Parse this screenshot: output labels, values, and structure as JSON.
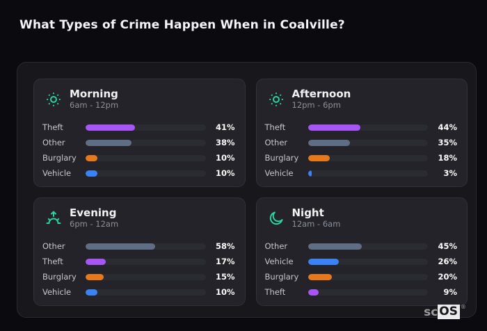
{
  "page_title": "What Types of Crime Happen When in Coalville?",
  "accent_color": "#2dd39e",
  "palette": {
    "theft": "#a855f7",
    "other": "#5f6e85",
    "burglary": "#e6791d",
    "vehicle": "#3b82f6"
  },
  "chart_data": [
    {
      "type": "bar",
      "orientation": "horizontal",
      "title": "Morning",
      "subtitle": "6am - 12pm",
      "icon": "sun-icon",
      "categories": [
        "Theft",
        "Other",
        "Burglary",
        "Vehicle"
      ],
      "values": [
        41,
        38,
        10,
        10
      ],
      "value_labels": [
        "41%",
        "38%",
        "10%",
        "10%"
      ],
      "bar_colors": [
        "#a855f7",
        "#5f6e85",
        "#e6791d",
        "#3b82f6"
      ],
      "xlim": [
        0,
        100
      ]
    },
    {
      "type": "bar",
      "orientation": "horizontal",
      "title": "Afternoon",
      "subtitle": "12pm - 6pm",
      "icon": "sun-icon",
      "categories": [
        "Theft",
        "Other",
        "Burglary",
        "Vehicle"
      ],
      "values": [
        44,
        35,
        18,
        3
      ],
      "value_labels": [
        "44%",
        "35%",
        "18%",
        "3%"
      ],
      "bar_colors": [
        "#a855f7",
        "#5f6e85",
        "#e6791d",
        "#3b82f6"
      ],
      "xlim": [
        0,
        100
      ]
    },
    {
      "type": "bar",
      "orientation": "horizontal",
      "title": "Evening",
      "subtitle": "6pm - 12am",
      "icon": "sunrise-icon",
      "categories": [
        "Other",
        "Theft",
        "Burglary",
        "Vehicle"
      ],
      "values": [
        58,
        17,
        15,
        10
      ],
      "value_labels": [
        "58%",
        "17%",
        "15%",
        "10%"
      ],
      "bar_colors": [
        "#5f6e85",
        "#a855f7",
        "#e6791d",
        "#3b82f6"
      ],
      "xlim": [
        0,
        100
      ]
    },
    {
      "type": "bar",
      "orientation": "horizontal",
      "title": "Night",
      "subtitle": "12am - 6am",
      "icon": "moon-icon",
      "categories": [
        "Other",
        "Vehicle",
        "Burglary",
        "Theft"
      ],
      "values": [
        45,
        26,
        20,
        9
      ],
      "value_labels": [
        "45%",
        "26%",
        "20%",
        "9%"
      ],
      "bar_colors": [
        "#5f6e85",
        "#3b82f6",
        "#e6791d",
        "#a855f7"
      ],
      "xlim": [
        0,
        100
      ]
    }
  ],
  "watermark": {
    "prefix": "sc",
    "boxed": "OS",
    "reg": "®"
  }
}
